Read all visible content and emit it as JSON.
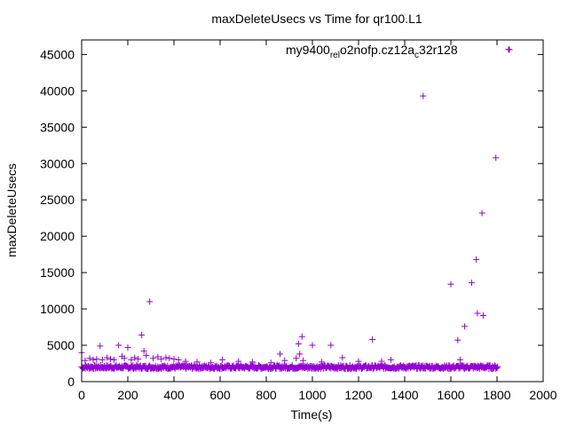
{
  "chart_data": {
    "type": "scatter",
    "title": "maxDeleteUsecs vs Time for qr100.L1",
    "xlabel": "Time(s)",
    "ylabel": "maxDeleteUsecs",
    "xlim": [
      0,
      2000
    ],
    "ylim": [
      0,
      47000
    ],
    "xticks": [
      0,
      200,
      400,
      600,
      800,
      1000,
      1200,
      1400,
      1600,
      1800,
      2000
    ],
    "yticks": [
      0,
      5000,
      10000,
      15000,
      20000,
      25000,
      30000,
      35000,
      40000,
      45000
    ],
    "grid": false,
    "legend_position": "top-right",
    "marker_color": "#9400d3",
    "marker": "plus",
    "baseline": {
      "x_start": 0,
      "x_end": 1800,
      "x_step": 5,
      "y_center": 2000,
      "y_spread": 250
    },
    "series": [
      {
        "name": "my9400_rel_o2nofp.cz12a_c32r128",
        "legend_parts": [
          {
            "t": "my9400",
            "s": "n"
          },
          {
            "t": "rel",
            "s": "sub"
          },
          {
            "t": "o",
            "s": "n"
          },
          {
            "t": "2nofp.cz12a",
            "s": "n"
          },
          {
            "t": "c",
            "s": "sub"
          },
          {
            "t": "32r128",
            "s": "n"
          }
        ],
        "points": [
          [
            0,
            4000
          ],
          [
            15,
            2900
          ],
          [
            35,
            3200
          ],
          [
            50,
            3000
          ],
          [
            65,
            3100
          ],
          [
            80,
            4900
          ],
          [
            90,
            3000
          ],
          [
            110,
            3300
          ],
          [
            125,
            3100
          ],
          [
            140,
            3000
          ],
          [
            160,
            5000
          ],
          [
            175,
            3500
          ],
          [
            185,
            3200
          ],
          [
            200,
            4700
          ],
          [
            215,
            3000
          ],
          [
            230,
            3300
          ],
          [
            245,
            3100
          ],
          [
            260,
            6400
          ],
          [
            270,
            4200
          ],
          [
            280,
            3600
          ],
          [
            295,
            11000
          ],
          [
            310,
            3200
          ],
          [
            330,
            3400
          ],
          [
            345,
            3100
          ],
          [
            365,
            3300
          ],
          [
            380,
            3200
          ],
          [
            400,
            3100
          ],
          [
            420,
            3000
          ],
          [
            450,
            2800
          ],
          [
            500,
            2700
          ],
          [
            560,
            2600
          ],
          [
            610,
            3000
          ],
          [
            680,
            2800
          ],
          [
            740,
            2700
          ],
          [
            820,
            2600
          ],
          [
            860,
            3800
          ],
          [
            880,
            2900
          ],
          [
            930,
            3200
          ],
          [
            940,
            5200
          ],
          [
            945,
            3800
          ],
          [
            955,
            6200
          ],
          [
            960,
            2900
          ],
          [
            1000,
            5000
          ],
          [
            1040,
            2700
          ],
          [
            1080,
            5000
          ],
          [
            1130,
            3300
          ],
          [
            1200,
            2800
          ],
          [
            1260,
            5800
          ],
          [
            1300,
            2800
          ],
          [
            1340,
            3000
          ],
          [
            1480,
            39300
          ],
          [
            1600,
            13400
          ],
          [
            1630,
            5700
          ],
          [
            1640,
            3000
          ],
          [
            1660,
            7600
          ],
          [
            1690,
            13600
          ],
          [
            1710,
            16800
          ],
          [
            1715,
            9400
          ],
          [
            1735,
            23200
          ],
          [
            1740,
            9100
          ],
          [
            1795,
            30800
          ],
          [
            1850,
            45700
          ]
        ]
      }
    ]
  }
}
